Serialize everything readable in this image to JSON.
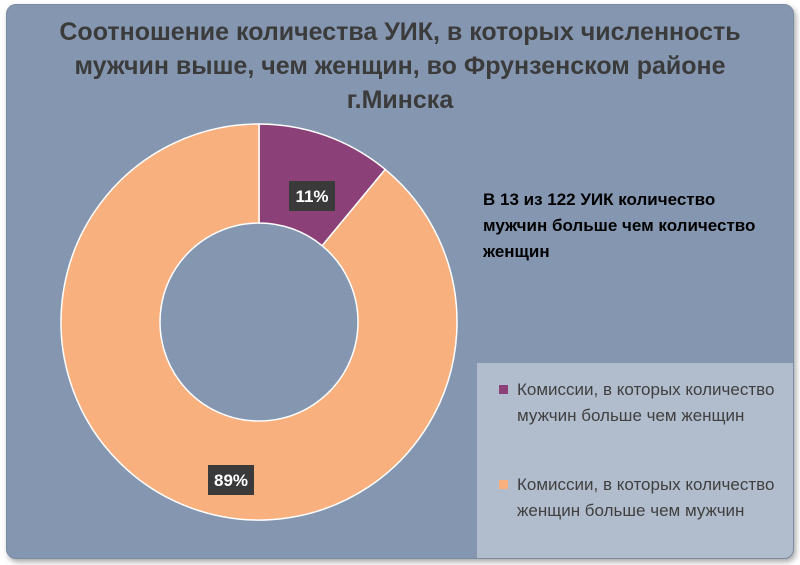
{
  "chart_data": {
    "type": "pie",
    "title": "Соотношение количества УИК, в которых численность мужчин выше, чем женщин, во Фрунзенском районе г.Минска",
    "annotation": "В 13 из 122 УИК количество мужчин больше чем количество женщин",
    "slices": [
      {
        "label": "Комиссии, в которых количество мужчин больше чем женщин",
        "value": 11,
        "data_label": "11%",
        "color": "#8b4177"
      },
      {
        "label": "Комиссии, в которых количество женщин больше чем мужчин",
        "value": 89,
        "data_label": "89%",
        "color": "#f9b07f"
      }
    ],
    "legend_position": "bottom-right",
    "style": {
      "background": "#8496b0",
      "legend_background": "#b1bdcd",
      "data_label_background": "#3a3a3a"
    }
  }
}
